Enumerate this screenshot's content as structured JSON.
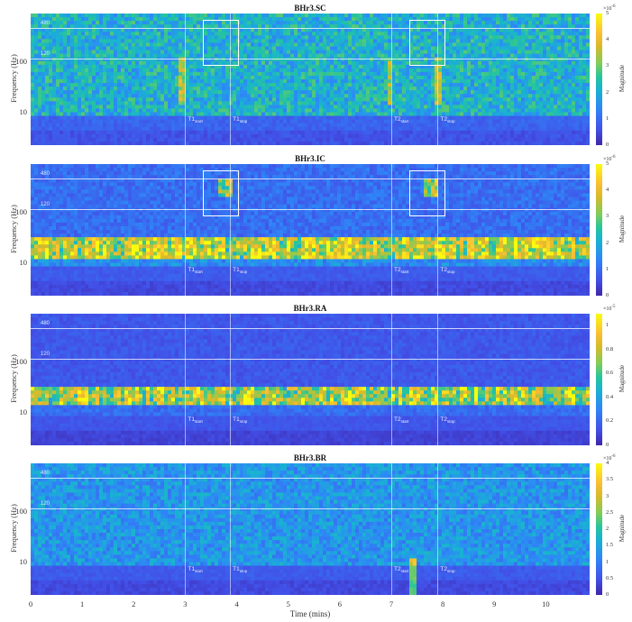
{
  "chart_data": [
    {
      "type": "heatmap",
      "title": "BHr3.SC",
      "xlabel": "Time (mins)",
      "ylabel": "Frequency (Hz)",
      "xlim": [
        0,
        10.85
      ],
      "y_scale": "log",
      "yticks": [
        "10",
        "100"
      ],
      "reference_lines_hz": [
        480,
        120
      ],
      "markers": [
        {
          "name": "T1start",
          "x": 3.0
        },
        {
          "name": "T1stop",
          "x": 3.87
        },
        {
          "name": "T2start",
          "x": 7.0
        },
        {
          "name": "T2stop",
          "x": 7.9
        }
      ],
      "highlight_boxes": [
        {
          "x0": 3.35,
          "x1": 4.05,
          "f_range": [
            80,
            700
          ]
        },
        {
          "x0": 7.35,
          "x1": 8.05,
          "f_range": [
            80,
            700
          ]
        }
      ],
      "colorbar": {
        "label": "Magnitude",
        "exponent": "×10^-6",
        "ticks": [
          0,
          1,
          2,
          3,
          4,
          5
        ],
        "range": [
          0,
          5
        ]
      },
      "description": "Broadband energy 10–1000 Hz, weak low-frequency band below ~8 Hz; mild activity near event windows."
    },
    {
      "type": "heatmap",
      "title": "BHr3.IC",
      "xlabel": "Time (mins)",
      "ylabel": "Frequency (Hz)",
      "xlim": [
        0,
        10.85
      ],
      "y_scale": "log",
      "yticks": [
        "10",
        "100"
      ],
      "reference_lines_hz": [
        480,
        120
      ],
      "markers": [
        {
          "name": "T1start",
          "x": 3.0
        },
        {
          "name": "T1stop",
          "x": 3.87
        },
        {
          "name": "T2start",
          "x": 7.0
        },
        {
          "name": "T2stop",
          "x": 7.9
        }
      ],
      "highlight_boxes": [
        {
          "x0": 3.35,
          "x1": 4.05,
          "f_range": [
            80,
            700
          ]
        },
        {
          "x0": 7.35,
          "x1": 8.05,
          "f_range": [
            80,
            700
          ]
        }
      ],
      "colorbar": {
        "label": "Magnitude",
        "exponent": "×10^-6",
        "ticks": [
          0,
          1,
          2,
          3,
          4,
          5
        ],
        "range": [
          0,
          5
        ]
      },
      "description": "Strong periodic band ~12–30 Hz throughout; bright bursts at ~250–400 Hz inside both boxes."
    },
    {
      "type": "heatmap",
      "title": "BHr3.RA",
      "xlabel": "Time (mins)",
      "ylabel": "Frequency (Hz)",
      "xlim": [
        0,
        10.85
      ],
      "y_scale": "log",
      "yticks": [
        "10",
        "100"
      ],
      "reference_lines_hz": [
        480,
        120
      ],
      "markers": [
        {
          "name": "T1start",
          "x": 3.0
        },
        {
          "name": "T1stop",
          "x": 3.87
        },
        {
          "name": "T2start",
          "x": 7.0
        },
        {
          "name": "T2stop",
          "x": 7.9
        }
      ],
      "colorbar": {
        "label": "Magnitude",
        "exponent": "×10^-5",
        "ticks": [
          0,
          0.2,
          0.4,
          0.6,
          0.8,
          1
        ],
        "range": [
          0,
          1.1
        ]
      },
      "description": "Dominant periodic band ~15–30 Hz; low energy elsewhere."
    },
    {
      "type": "heatmap",
      "title": "BHr3.BR",
      "xlabel": "Time (mins)",
      "ylabel": "Frequency (Hz)",
      "xlim": [
        0,
        10.85
      ],
      "xticks": [
        0,
        1,
        2,
        3,
        4,
        5,
        6,
        7,
        8,
        9,
        10
      ],
      "y_scale": "log",
      "yticks": [
        "10",
        "100"
      ],
      "reference_lines_hz": [
        480,
        120
      ],
      "markers": [
        {
          "name": "T1start",
          "x": 3.0
        },
        {
          "name": "T1stop",
          "x": 3.87
        },
        {
          "name": "T2start",
          "x": 7.0
        },
        {
          "name": "T2stop",
          "x": 7.9
        }
      ],
      "colorbar": {
        "label": "Magnitude",
        "exponent": "×10^-6",
        "ticks": [
          0,
          0.5,
          1,
          1.5,
          2,
          2.5,
          3,
          3.5,
          4
        ],
        "range": [
          0,
          4
        ]
      },
      "description": "Diffuse broadband energy 10–500 Hz; a vertical transient at ~7.4 min in the low frequencies."
    }
  ],
  "panels": [
    {
      "title": "BHr3.SC",
      "cb_exp": "×10",
      "cb_exp_pow": "-6",
      "cb_ticks": [
        "5",
        "4",
        "3",
        "2",
        "1",
        "0"
      ]
    },
    {
      "title": "BHr3.IC",
      "cb_exp": "×10",
      "cb_exp_pow": "-6",
      "cb_ticks": [
        "5",
        "4",
        "3",
        "2",
        "1",
        "0"
      ]
    },
    {
      "title": "BHr3.RA",
      "cb_exp": "×10",
      "cb_exp_pow": "-5",
      "cb_ticks": [
        "1",
        "0.8",
        "0.6",
        "0.4",
        "0.2",
        "0"
      ]
    },
    {
      "title": "BHr3.BR",
      "cb_exp": "×10",
      "cb_exp_pow": "-6",
      "cb_ticks": [
        "4",
        "3.5",
        "3",
        "2.5",
        "2",
        "1.5",
        "1",
        "0.5",
        "0"
      ]
    }
  ],
  "labels": {
    "ylabel": "Frequency (Hz)",
    "xlabel": "Time (mins)",
    "cblabel": "Magnitude",
    "y100": "100",
    "y10": "10",
    "ref480": "480",
    "ref120": "120",
    "t1": "T1",
    "t2": "T2",
    "start": "start",
    "stop": "stop"
  },
  "xticks": [
    "0",
    "1",
    "2",
    "3",
    "4",
    "5",
    "6",
    "7",
    "8",
    "9",
    "10"
  ]
}
